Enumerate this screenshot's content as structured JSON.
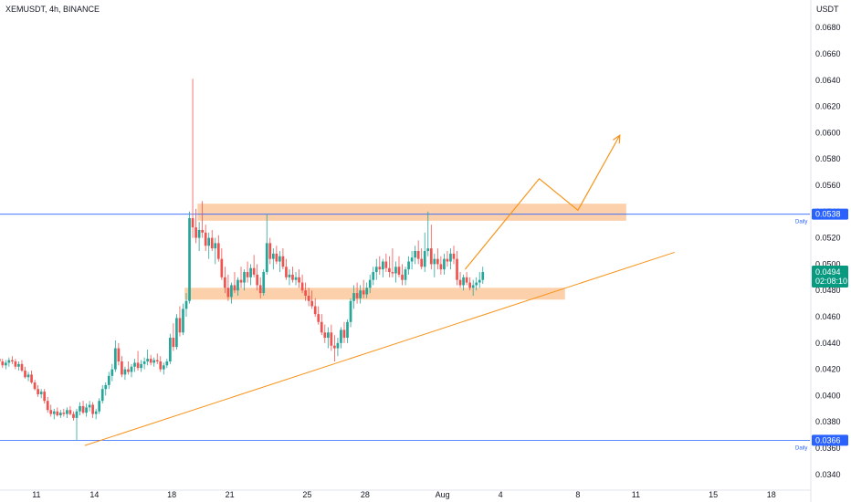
{
  "header": {
    "symbol_line": "XEMUSDT, 4h, BINANCE",
    "currency": "USDT"
  },
  "colors": {
    "bull": "#26a69a",
    "bear": "#ef5350",
    "zone": "#fbc08f",
    "trend": "#f7931a",
    "level": "#2962ff",
    "price_tag": "#089981",
    "level_tag": "#2962ff"
  },
  "chart_data": {
    "type": "candlestick",
    "title": "",
    "xlabel": "",
    "ylabel": "",
    "y_range": [
      0.0326,
      0.0694
    ],
    "y_ticks": [
      "0.0340",
      "0.0360",
      "0.0380",
      "0.0400",
      "0.0420",
      "0.0440",
      "0.0460",
      "0.0480",
      "0.0500",
      "0.0520",
      "0.0540",
      "0.0560",
      "0.0580",
      "0.0600",
      "0.0620",
      "0.0640",
      "0.0660",
      "0.0680"
    ],
    "x_range_days": [
      "Jul 9",
      "Aug 21"
    ],
    "x_ticks": [
      {
        "label": "11",
        "date": "Jul 11"
      },
      {
        "label": "14",
        "date": "Jul 14"
      },
      {
        "label": "18",
        "date": "Jul 18"
      },
      {
        "label": "21",
        "date": "Jul 21"
      },
      {
        "label": "25",
        "date": "Jul 25"
      },
      {
        "label": "28",
        "date": "Jul 28"
      },
      {
        "label": "Aug",
        "date": "Aug 1"
      },
      {
        "label": "4",
        "date": "Aug 4"
      },
      {
        "label": "8",
        "date": "Aug 8"
      },
      {
        "label": "11",
        "date": "Aug 11"
      },
      {
        "label": "15",
        "date": "Aug 15"
      },
      {
        "label": "18",
        "date": "Aug 18"
      }
    ],
    "grid": false,
    "first_candle": "Jul 9 00:00",
    "candle_interval": "4h",
    "candles": [
      [
        0.0428,
        0.0431,
        0.0424,
        0.0426
      ],
      [
        0.0426,
        0.0428,
        0.0421,
        0.0423
      ],
      [
        0.0423,
        0.0427,
        0.042,
        0.0425
      ],
      [
        0.0425,
        0.0429,
        0.0422,
        0.0427
      ],
      [
        0.0427,
        0.043,
        0.0424,
        0.0426
      ],
      [
        0.0426,
        0.0428,
        0.042,
        0.0422
      ],
      [
        0.0422,
        0.0426,
        0.0419,
        0.0424
      ],
      [
        0.0424,
        0.0427,
        0.0418,
        0.0419
      ],
      [
        0.0419,
        0.0422,
        0.0413,
        0.0414
      ],
      [
        0.0414,
        0.0418,
        0.0411,
        0.0416
      ],
      [
        0.0416,
        0.0419,
        0.0409,
        0.041
      ],
      [
        0.041,
        0.0412,
        0.0404,
        0.0405
      ],
      [
        0.0405,
        0.0408,
        0.0399,
        0.0401
      ],
      [
        0.0401,
        0.0405,
        0.0398,
        0.0403
      ],
      [
        0.0403,
        0.0405,
        0.0394,
        0.0396
      ],
      [
        0.0396,
        0.0399,
        0.0387,
        0.0389
      ],
      [
        0.0389,
        0.0393,
        0.0384,
        0.0386
      ],
      [
        0.0386,
        0.039,
        0.0382,
        0.0388
      ],
      [
        0.0388,
        0.0391,
        0.0384,
        0.0385
      ],
      [
        0.0385,
        0.0389,
        0.0383,
        0.0387
      ],
      [
        0.0387,
        0.039,
        0.0384,
        0.0386
      ],
      [
        0.0386,
        0.0391,
        0.0383,
        0.0389
      ],
      [
        0.0389,
        0.0392,
        0.0385,
        0.0386
      ],
      [
        0.0386,
        0.0388,
        0.0381,
        0.0383
      ],
      [
        0.0383,
        0.039,
        0.0366,
        0.0388
      ],
      [
        0.0388,
        0.0395,
        0.0385,
        0.0392
      ],
      [
        0.0392,
        0.0396,
        0.0386,
        0.0387
      ],
      [
        0.0387,
        0.0394,
        0.0384,
        0.0391
      ],
      [
        0.0391,
        0.0396,
        0.0388,
        0.0393
      ],
      [
        0.0393,
        0.0395,
        0.0383,
        0.0386
      ],
      [
        0.0386,
        0.039,
        0.0382,
        0.0388
      ],
      [
        0.0388,
        0.0398,
        0.0386,
        0.0396
      ],
      [
        0.0396,
        0.0408,
        0.0394,
        0.0405
      ],
      [
        0.0405,
        0.041,
        0.04,
        0.0408
      ],
      [
        0.0408,
        0.0418,
        0.0405,
        0.0415
      ],
      [
        0.0415,
        0.0424,
        0.0411,
        0.042
      ],
      [
        0.042,
        0.0442,
        0.0418,
        0.0436
      ],
      [
        0.0436,
        0.044,
        0.0423,
        0.0426
      ],
      [
        0.0426,
        0.043,
        0.0414,
        0.0416
      ],
      [
        0.0416,
        0.0422,
        0.0412,
        0.042
      ],
      [
        0.042,
        0.0426,
        0.0416,
        0.0418
      ],
      [
        0.0418,
        0.0424,
        0.0414,
        0.0422
      ],
      [
        0.0422,
        0.0428,
        0.0418,
        0.0425
      ],
      [
        0.0425,
        0.0434,
        0.0419,
        0.0421
      ],
      [
        0.0421,
        0.0427,
        0.0418,
        0.0424
      ],
      [
        0.0424,
        0.0429,
        0.042,
        0.0426
      ],
      [
        0.0426,
        0.0435,
        0.0423,
        0.0428
      ],
      [
        0.0428,
        0.0431,
        0.0423,
        0.0425
      ],
      [
        0.0425,
        0.0429,
        0.0422,
        0.0427
      ],
      [
        0.0427,
        0.0432,
        0.0424,
        0.0426
      ],
      [
        0.0426,
        0.043,
        0.0418,
        0.042
      ],
      [
        0.042,
        0.0425,
        0.0416,
        0.0423
      ],
      [
        0.0423,
        0.0428,
        0.0421,
        0.0426
      ],
      [
        0.0426,
        0.0447,
        0.0424,
        0.0444
      ],
      [
        0.0444,
        0.0455,
        0.0434,
        0.0437
      ],
      [
        0.0437,
        0.0462,
        0.0435,
        0.0459
      ],
      [
        0.0459,
        0.0468,
        0.0445,
        0.0448
      ],
      [
        0.0448,
        0.047,
        0.0446,
        0.0466
      ],
      [
        0.0466,
        0.0478,
        0.046,
        0.0472
      ],
      [
        0.0472,
        0.054,
        0.047,
        0.0535
      ],
      [
        0.0535,
        0.0641,
        0.052,
        0.0528
      ],
      [
        0.0528,
        0.0542,
        0.0516,
        0.052
      ],
      [
        0.052,
        0.0532,
        0.051,
        0.0526
      ],
      [
        0.0526,
        0.0548,
        0.052,
        0.0524
      ],
      [
        0.0524,
        0.053,
        0.051,
        0.0514
      ],
      [
        0.0514,
        0.0524,
        0.0504,
        0.052
      ],
      [
        0.052,
        0.0526,
        0.051,
        0.0512
      ],
      [
        0.0512,
        0.052,
        0.05,
        0.0516
      ],
      [
        0.0516,
        0.0522,
        0.0502,
        0.0504
      ],
      [
        0.0504,
        0.0512,
        0.0488,
        0.049
      ],
      [
        0.049,
        0.0498,
        0.0478,
        0.0482
      ],
      [
        0.0482,
        0.0492,
        0.0472,
        0.0475
      ],
      [
        0.0475,
        0.0486,
        0.047,
        0.0484
      ],
      [
        0.0484,
        0.0494,
        0.0478,
        0.048
      ],
      [
        0.048,
        0.049,
        0.0476,
        0.0488
      ],
      [
        0.0488,
        0.0498,
        0.0482,
        0.0486
      ],
      [
        0.0486,
        0.0496,
        0.048,
        0.0494
      ],
      [
        0.0494,
        0.0502,
        0.0486,
        0.049
      ],
      [
        0.049,
        0.05,
        0.0484,
        0.0497
      ],
      [
        0.0497,
        0.0507,
        0.049,
        0.0492
      ],
      [
        0.0492,
        0.05,
        0.048,
        0.0484
      ],
      [
        0.0484,
        0.049,
        0.0474,
        0.0478
      ],
      [
        0.0478,
        0.0496,
        0.0476,
        0.0494
      ],
      [
        0.0494,
        0.0538,
        0.0492,
        0.0516
      ],
      [
        0.0516,
        0.052,
        0.05,
        0.0504
      ],
      [
        0.0504,
        0.0512,
        0.0496,
        0.0508
      ],
      [
        0.0508,
        0.0514,
        0.05,
        0.0502
      ],
      [
        0.0502,
        0.051,
        0.0494,
        0.0506
      ],
      [
        0.0506,
        0.0512,
        0.0496,
        0.0498
      ],
      [
        0.0498,
        0.0504,
        0.0488,
        0.049
      ],
      [
        0.049,
        0.0496,
        0.0484,
        0.0492
      ],
      [
        0.0492,
        0.0498,
        0.0486,
        0.0488
      ],
      [
        0.0488,
        0.0494,
        0.0484,
        0.049
      ],
      [
        0.049,
        0.0496,
        0.0482,
        0.0486
      ],
      [
        0.0486,
        0.0492,
        0.0478,
        0.048
      ],
      [
        0.048,
        0.0486,
        0.0472,
        0.0476
      ],
      [
        0.0476,
        0.0482,
        0.0468,
        0.0472
      ],
      [
        0.0472,
        0.048,
        0.0466,
        0.0468
      ],
      [
        0.0468,
        0.0474,
        0.046,
        0.0462
      ],
      [
        0.0462,
        0.0468,
        0.0454,
        0.0456
      ],
      [
        0.0456,
        0.0462,
        0.0446,
        0.0448
      ],
      [
        0.0448,
        0.0454,
        0.044,
        0.0444
      ],
      [
        0.0444,
        0.0452,
        0.0436,
        0.0448
      ],
      [
        0.0448,
        0.0454,
        0.0434,
        0.0438
      ],
      [
        0.0438,
        0.0446,
        0.0426,
        0.0436
      ],
      [
        0.0436,
        0.0444,
        0.043,
        0.044
      ],
      [
        0.044,
        0.0452,
        0.0436,
        0.045
      ],
      [
        0.045,
        0.0456,
        0.044,
        0.0444
      ],
      [
        0.0444,
        0.0458,
        0.044,
        0.0456
      ],
      [
        0.0456,
        0.0474,
        0.0452,
        0.0472
      ],
      [
        0.0472,
        0.0484,
        0.0466,
        0.0478
      ],
      [
        0.0478,
        0.0486,
        0.047,
        0.0474
      ],
      [
        0.0474,
        0.0484,
        0.047,
        0.048
      ],
      [
        0.048,
        0.0488,
        0.0474,
        0.0477
      ],
      [
        0.0477,
        0.0486,
        0.0474,
        0.0482
      ],
      [
        0.0482,
        0.0492,
        0.0478,
        0.0488
      ],
      [
        0.0488,
        0.0498,
        0.0484,
        0.0494
      ],
      [
        0.0494,
        0.0504,
        0.0488,
        0.0498
      ],
      [
        0.0498,
        0.0506,
        0.0492,
        0.0496
      ],
      [
        0.0496,
        0.0504,
        0.049,
        0.0502
      ],
      [
        0.0502,
        0.0508,
        0.0494,
        0.0497
      ],
      [
        0.0497,
        0.0506,
        0.049,
        0.0494
      ],
      [
        0.0494,
        0.0512,
        0.049,
        0.0493
      ],
      [
        0.0493,
        0.0502,
        0.0486,
        0.0498
      ],
      [
        0.0498,
        0.0506,
        0.049,
        0.0492
      ],
      [
        0.0492,
        0.05,
        0.0484,
        0.0488
      ],
      [
        0.0488,
        0.0498,
        0.0484,
        0.0496
      ],
      [
        0.0496,
        0.0506,
        0.0492,
        0.0502
      ],
      [
        0.0502,
        0.051,
        0.0496,
        0.0505
      ],
      [
        0.0505,
        0.0514,
        0.05,
        0.051
      ],
      [
        0.051,
        0.0518,
        0.05,
        0.0504
      ],
      [
        0.0504,
        0.0512,
        0.0496,
        0.0498
      ],
      [
        0.0498,
        0.0524,
        0.0494,
        0.051
      ],
      [
        0.051,
        0.054,
        0.0506,
        0.0512
      ],
      [
        0.0512,
        0.053,
        0.0496,
        0.05
      ],
      [
        0.05,
        0.0508,
        0.049,
        0.0504
      ],
      [
        0.0504,
        0.0512,
        0.0496,
        0.05
      ],
      [
        0.05,
        0.0506,
        0.0492,
        0.0496
      ],
      [
        0.0496,
        0.0508,
        0.0492,
        0.0504
      ],
      [
        0.0504,
        0.051,
        0.0498,
        0.0502
      ],
      [
        0.0502,
        0.0512,
        0.0496,
        0.0508
      ],
      [
        0.0508,
        0.0514,
        0.05,
        0.0504
      ],
      [
        0.0504,
        0.051,
        0.0484,
        0.0488
      ],
      [
        0.0488,
        0.0494,
        0.0482,
        0.0484
      ],
      [
        0.0484,
        0.0492,
        0.048,
        0.049
      ],
      [
        0.049,
        0.0494,
        0.0484,
        0.0486
      ],
      [
        0.0486,
        0.049,
        0.048,
        0.0482
      ],
      [
        0.0482,
        0.0488,
        0.0476,
        0.0484
      ],
      [
        0.0484,
        0.049,
        0.048,
        0.0486
      ],
      [
        0.0486,
        0.0494,
        0.0482,
        0.0488
      ],
      [
        0.0488,
        0.0498,
        0.0485,
        0.0494
      ]
    ],
    "annotations": {
      "resistance_zone": {
        "from": "Jul 19 08:00",
        "to": "Aug 10 12:00",
        "y_low": 0.0533,
        "y_high": 0.0546
      },
      "support_zone": {
        "from": "Jul 18 16:00",
        "to": "Aug 7 08:00",
        "y_low": 0.0473,
        "y_high": 0.0482
      },
      "trendline": {
        "from": [
          "Jul 13 12:00",
          0.0362
        ],
        "to": [
          "Aug 13 00:00",
          0.0509
        ]
      },
      "projection_path": [
        [
          "Aug 2 04:00",
          0.0496
        ],
        [
          "Aug 6 00:00",
          0.0565
        ],
        [
          "Aug 8 00:00",
          0.0541
        ],
        [
          "Aug 10 04:00",
          0.0598
        ]
      ],
      "horizontal_levels": [
        {
          "value": 0.0538,
          "tag": "0.0538",
          "caption": "Daily"
        },
        {
          "value": 0.0366,
          "tag": "0.0366",
          "caption": "Daily"
        }
      ],
      "last_price": {
        "value": 0.0494,
        "tag": "0.0494",
        "countdown": "02:08:10"
      }
    }
  }
}
